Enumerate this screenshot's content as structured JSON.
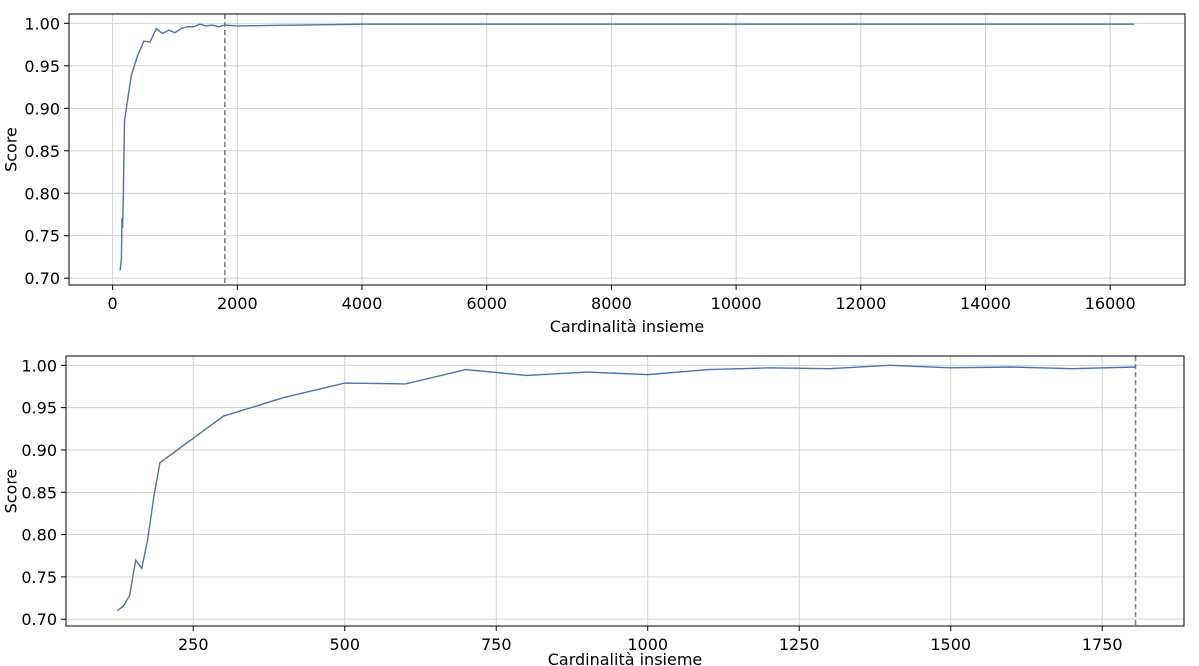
{
  "chart_data": [
    {
      "type": "line",
      "xlabel": "Cardinalità insieme",
      "ylabel": "Score",
      "xlim": [
        -700,
        17200
      ],
      "ylim": [
        0.692,
        1.011
      ],
      "grid": true,
      "x_ticks": [
        0,
        2000,
        4000,
        6000,
        8000,
        10000,
        12000,
        14000,
        16000
      ],
      "y_ticks": [
        0.7,
        0.75,
        0.8,
        0.85,
        0.9,
        0.95,
        1.0
      ],
      "vline": 1800,
      "line_color": "#4c72b0",
      "series": [
        {
          "name": "score",
          "x": [
            120,
            140,
            150,
            160,
            170,
            190,
            300,
            400,
            500,
            600,
            700,
            800,
            900,
            1000,
            1100,
            1200,
            1300,
            1400,
            1500,
            1600,
            1700,
            1800,
            2000,
            4000,
            8000,
            12000,
            16384
          ],
          "y": [
            0.709,
            0.722,
            0.77,
            0.76,
            0.792,
            0.885,
            0.939,
            0.962,
            0.979,
            0.978,
            0.994,
            0.988,
            0.992,
            0.989,
            0.994,
            0.996,
            0.996,
            0.999,
            0.997,
            0.998,
            0.996,
            0.998,
            0.997,
            0.999,
            0.999,
            0.999,
            0.999
          ]
        }
      ]
    },
    {
      "type": "line",
      "xlabel": "Cardinalità insieme",
      "ylabel": "Score",
      "xlim": [
        40,
        1885
      ],
      "ylim": [
        0.692,
        1.011
      ],
      "grid": true,
      "x_ticks": [
        250,
        500,
        750,
        1000,
        1250,
        1500,
        1750
      ],
      "y_ticks": [
        0.7,
        0.75,
        0.8,
        0.85,
        0.9,
        0.95,
        1.0
      ],
      "vline": 1805,
      "line_color": "#4c72b0",
      "series": [
        {
          "name": "score",
          "x": [
            125,
            135,
            145,
            155,
            165,
            175,
            185,
            195,
            300,
            400,
            500,
            600,
            700,
            800,
            900,
            1000,
            1100,
            1200,
            1300,
            1400,
            1500,
            1600,
            1700,
            1805
          ],
          "y": [
            0.71,
            0.716,
            0.728,
            0.77,
            0.76,
            0.795,
            0.845,
            0.885,
            0.94,
            0.962,
            0.979,
            0.978,
            0.995,
            0.988,
            0.992,
            0.989,
            0.995,
            0.997,
            0.996,
            1.0,
            0.997,
            0.998,
            0.996,
            0.998
          ]
        }
      ]
    }
  ]
}
